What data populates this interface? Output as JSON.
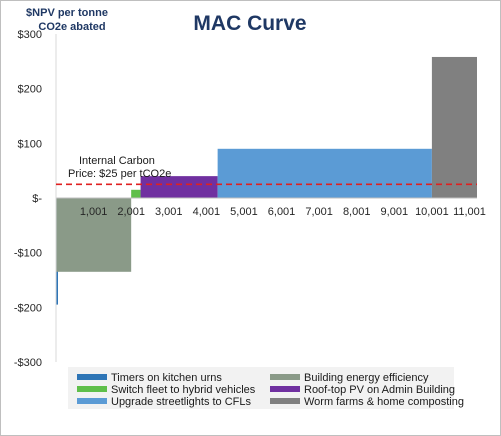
{
  "chart_data": {
    "type": "bar",
    "title": "MAC Curve",
    "ylabel_lines": [
      "$NPV per tonne",
      "CO2e abated"
    ],
    "ylim": [
      -300,
      300
    ],
    "y_ticks": [
      300,
      200,
      100,
      0,
      -100,
      -200,
      -300
    ],
    "y_tick_labels": [
      "$300",
      "$200",
      "$100",
      "$-",
      "-$100",
      "-$200",
      "-$300"
    ],
    "xlim": [
      1,
      11201
    ],
    "x_ticks": [
      1001,
      2001,
      3001,
      4001,
      5001,
      6001,
      7001,
      8001,
      9001,
      10001,
      11001
    ],
    "x_tick_labels": [
      "1,001",
      "2,001",
      "3,001",
      "4,001",
      "5,001",
      "6,001",
      "7,001",
      "8,001",
      "9,001",
      "10,001",
      "11,001"
    ],
    "carbon_price": 25,
    "carbon_price_annotation": [
      "Internal Carbon",
      "Price: $25 per tCO2e"
    ],
    "legend_position": "bottom",
    "series": [
      {
        "name": "Timers on kitchen urns",
        "x_start": 1,
        "x_end": 15,
        "value": -195,
        "color": "#2e75b6"
      },
      {
        "name": "Building energy efficiency",
        "x_start": 15,
        "x_end": 2001,
        "value": -135,
        "color": "#8a9a88"
      },
      {
        "name": "Switch fleet to hybrid vehicles",
        "x_start": 2001,
        "x_end": 2251,
        "value": 15,
        "color": "#5fbf4a"
      },
      {
        "name": "Roof-top PV on Admin Building",
        "x_start": 2251,
        "x_end": 4301,
        "value": 40,
        "color": "#7030a0"
      },
      {
        "name": "Upgrade streetlights to CFLs",
        "x_start": 4301,
        "x_end": 10001,
        "value": 90,
        "color": "#5b9bd5"
      },
      {
        "name": "Worm farms & home composting",
        "x_start": 10001,
        "x_end": 11201,
        "value": 258,
        "color": "#808080"
      }
    ]
  }
}
